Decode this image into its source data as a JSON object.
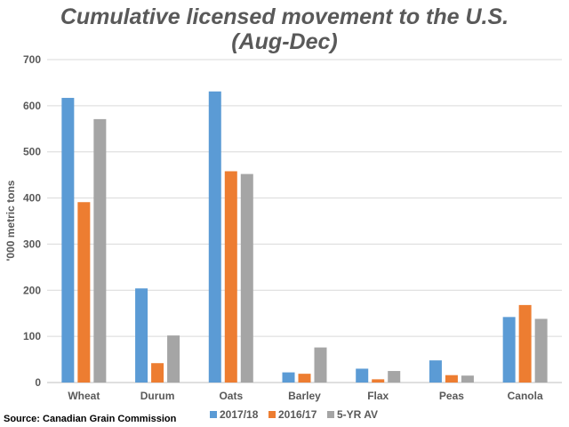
{
  "chart_data": {
    "type": "bar",
    "title_lines": [
      "Cumulative licensed movement  to the U.S.",
      "(Aug-Dec)"
    ],
    "ylabel": "'000 metric tons",
    "ylim": [
      0,
      700
    ],
    "yticks": [
      0,
      100,
      200,
      300,
      400,
      500,
      600,
      700
    ],
    "grid": true,
    "legend_position": "bottom",
    "categories": [
      "Wheat",
      "Durum",
      "Oats",
      "Barley",
      "Flax",
      "Peas",
      "Canola"
    ],
    "series": [
      {
        "name": "2017/18",
        "color": "#5b9bd5",
        "values": [
          617,
          204,
          631,
          22,
          30,
          48,
          142
        ]
      },
      {
        "name": "2016/17",
        "color": "#ed7d31",
        "values": [
          391,
          42,
          458,
          19,
          7,
          16,
          168
        ]
      },
      {
        "name": "5-YR AV",
        "color": "#a5a5a5",
        "values": [
          571,
          102,
          452,
          76,
          25,
          15,
          138
        ]
      }
    ]
  },
  "source": "Source: Canadian Grain Commission"
}
